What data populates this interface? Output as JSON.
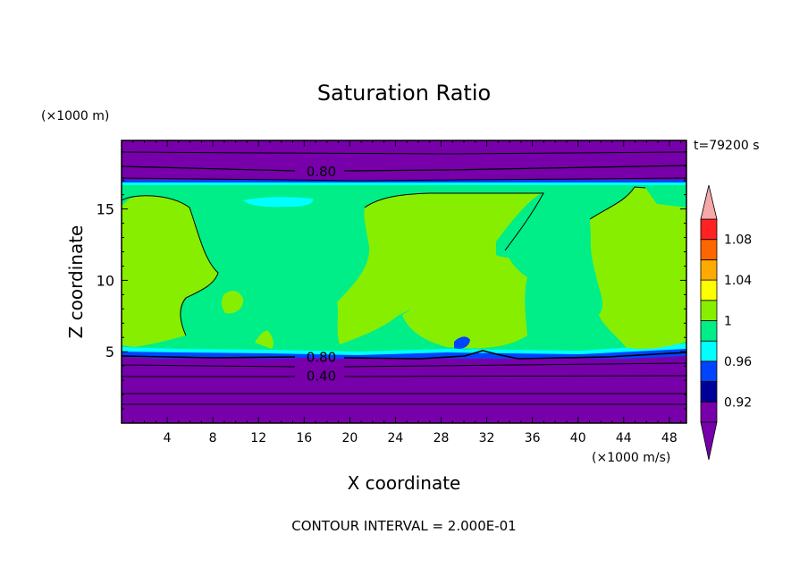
{
  "chart_data": {
    "type": "heatmap",
    "title": "Saturation Ratio",
    "xlabel": "X coordinate",
    "ylabel": "Z coordinate",
    "x_unit_label": "(×1000 m/s)",
    "y_unit_label": "(×1000 m)",
    "time_label": "t=79200 s",
    "footer": "CONTOUR INTERVAL = 2.000E-01",
    "xlim": [
      0,
      49.5
    ],
    "ylim": [
      0,
      19.8
    ],
    "x_ticks": [
      4,
      8,
      12,
      16,
      20,
      24,
      28,
      32,
      36,
      40,
      44,
      48
    ],
    "y_ticks": [
      5,
      10,
      15
    ],
    "contour_labels": [
      {
        "text": "0.80",
        "x": 17.5,
        "y": 17.6
      },
      {
        "text": "0.80",
        "x": 17.5,
        "y": 4.6
      },
      {
        "text": "0.40",
        "x": 17.5,
        "y": 3.3
      }
    ],
    "colorbar": {
      "levels": [
        0.9,
        0.92,
        0.94,
        0.96,
        0.98,
        1.0,
        1.02,
        1.04,
        1.06,
        1.08,
        1.1
      ],
      "colors": [
        "#7700aa",
        "#000099",
        "#0044ff",
        "#00ffff",
        "#00ee88",
        "#88ee00",
        "#ffff00",
        "#ffaa00",
        "#ff6600",
        "#ff2222"
      ],
      "under_color": "#7700aa",
      "over_color": "#f7a8a8",
      "tick_labels": [
        {
          "value": 0.92,
          "label": "0.92"
        },
        {
          "value": 0.96,
          "label": "0.96"
        },
        {
          "value": 1.0,
          "label": "1"
        },
        {
          "value": 1.04,
          "label": "1.04"
        },
        {
          "value": 1.08,
          "label": "1.08"
        }
      ]
    },
    "regions": [
      {
        "class": "green_main",
        "color": "#00ee88",
        "z_range": [
          5.3,
          16.6
        ]
      },
      {
        "class": "purple_top",
        "color": "#7700aa",
        "z_range": [
          16.9,
          19.8
        ]
      },
      {
        "class": "purple_bottom",
        "color": "#7700aa",
        "z_range": [
          0,
          5.1
        ]
      }
    ]
  }
}
